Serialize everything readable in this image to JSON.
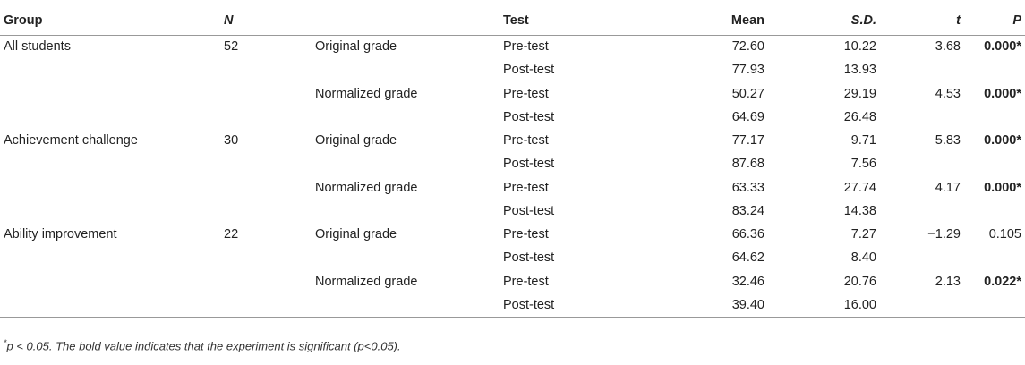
{
  "table": {
    "headers": {
      "group": "Group",
      "n": "N",
      "type": "",
      "test": "Test",
      "mean": "Mean",
      "sd": "S.D.",
      "t": "t",
      "p": "P"
    },
    "rows": [
      {
        "group": "All students",
        "n": "52",
        "type": "Original grade",
        "test": "Pre-test",
        "mean": "72.60",
        "sd": "10.22",
        "t": "3.68",
        "p": "0.000*",
        "p_bold": true
      },
      {
        "group": "",
        "n": "",
        "type": "",
        "test": "Post-test",
        "mean": "77.93",
        "sd": "13.93",
        "t": "",
        "p": "",
        "p_bold": false
      },
      {
        "group": "",
        "n": "",
        "type": "Normalized grade",
        "test": "Pre-test",
        "mean": "50.27",
        "sd": "29.19",
        "t": "4.53",
        "p": "0.000*",
        "p_bold": true
      },
      {
        "group": "",
        "n": "",
        "type": "",
        "test": "Post-test",
        "mean": "64.69",
        "sd": "26.48",
        "t": "",
        "p": "",
        "p_bold": false
      },
      {
        "group": "Achievement challenge",
        "n": "30",
        "type": "Original grade",
        "test": "Pre-test",
        "mean": "77.17",
        "sd": "9.71",
        "t": "5.83",
        "p": "0.000*",
        "p_bold": true
      },
      {
        "group": "",
        "n": "",
        "type": "",
        "test": "Post-test",
        "mean": "87.68",
        "sd": "7.56",
        "t": "",
        "p": "",
        "p_bold": false
      },
      {
        "group": "",
        "n": "",
        "type": "Normalized grade",
        "test": "Pre-test",
        "mean": "63.33",
        "sd": "27.74",
        "t": "4.17",
        "p": "0.000*",
        "p_bold": true
      },
      {
        "group": "",
        "n": "",
        "type": "",
        "test": "Post-test",
        "mean": "83.24",
        "sd": "14.38",
        "t": "",
        "p": "",
        "p_bold": false
      },
      {
        "group": "Ability improvement",
        "n": "22",
        "type": "Original grade",
        "test": "Pre-test",
        "mean": "66.36",
        "sd": "7.27",
        "t": "−1.29",
        "p": "0.105",
        "p_bold": false
      },
      {
        "group": "",
        "n": "",
        "type": "",
        "test": "Post-test",
        "mean": "64.62",
        "sd": "8.40",
        "t": "",
        "p": "",
        "p_bold": false
      },
      {
        "group": "",
        "n": "",
        "type": "Normalized grade",
        "test": "Pre-test",
        "mean": "32.46",
        "sd": "20.76",
        "t": "2.13",
        "p": "0.022*",
        "p_bold": true
      },
      {
        "group": "",
        "n": "",
        "type": "",
        "test": "Post-test",
        "mean": "39.40",
        "sd": "16.00",
        "t": "",
        "p": "",
        "p_bold": false
      }
    ]
  },
  "footnote": {
    "symbol": "*",
    "text": "p < 0.05. The bold value indicates that the experiment is significant (p<0.05)."
  }
}
